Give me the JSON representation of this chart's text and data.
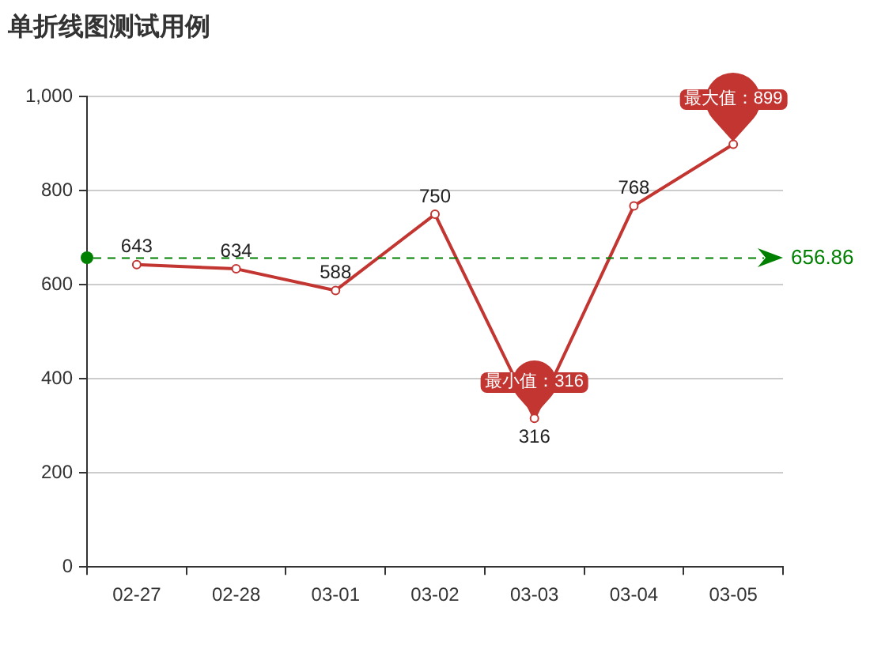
{
  "chart_data": {
    "type": "line",
    "title": "单折线图测试用例",
    "categories": [
      "02-27",
      "02-28",
      "03-01",
      "03-02",
      "03-03",
      "03-04",
      "03-05"
    ],
    "values": [
      643,
      634,
      588,
      750,
      316,
      768,
      899
    ],
    "color": "#c23531",
    "value_labels": [
      "643",
      "634",
      "588",
      "750",
      "316",
      "768",
      null
    ],
    "ylim": [
      0,
      1000
    ],
    "yticks": [
      0,
      200,
      400,
      600,
      800,
      {
        "value": 1000,
        "label": "1,000"
      }
    ],
    "grid": "y",
    "marker": "circle",
    "ref_lines": [
      {
        "axis": "y",
        "value": 656.86,
        "label": "656.86",
        "color": "#008000",
        "line_style": "dashed"
      }
    ],
    "annotations": [
      {
        "text": "最大值：899",
        "x": "03-05",
        "y": 899
      },
      {
        "text": "最小值：316",
        "x": "03-03",
        "y": 316
      }
    ]
  }
}
